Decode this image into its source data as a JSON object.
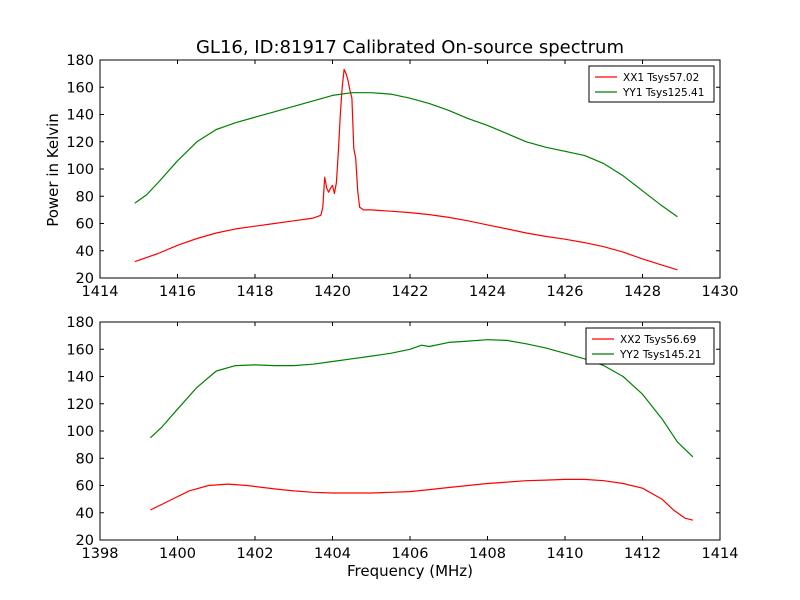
{
  "chart_data": {
    "type": "line",
    "title": "GL16, ID:81917 Calibrated On-source spectrum",
    "ylabel": "Power in Kelvin",
    "xlabel": "Frequency (MHz)",
    "grid": false,
    "legend_position": "top-right",
    "panels": [
      {
        "xlim": [
          1414,
          1430
        ],
        "ylim": [
          20,
          180
        ],
        "xticks": [
          "1414",
          "1416",
          "1418",
          "1420",
          "1422",
          "1424",
          "1426",
          "1428",
          "1430"
        ],
        "yticks": [
          "20",
          "40",
          "60",
          "80",
          "100",
          "120",
          "140",
          "160",
          "180"
        ],
        "series": [
          {
            "name": "XX1 Tsys57.02",
            "color": "#ff0000",
            "points": [
              [
                1414.9,
                32
              ],
              [
                1415.5,
                38
              ],
              [
                1416,
                44
              ],
              [
                1416.5,
                49
              ],
              [
                1417,
                53
              ],
              [
                1417.5,
                56
              ],
              [
                1418,
                58
              ],
              [
                1418.5,
                60
              ],
              [
                1419,
                62
              ],
              [
                1419.5,
                64
              ],
              [
                1419.7,
                66
              ],
              [
                1419.75,
                72
              ],
              [
                1419.8,
                94
              ],
              [
                1419.85,
                86
              ],
              [
                1419.9,
                83
              ],
              [
                1419.95,
                86
              ],
              [
                1420.0,
                88
              ],
              [
                1420.05,
                82
              ],
              [
                1420.1,
                90
              ],
              [
                1420.15,
                112
              ],
              [
                1420.2,
                140
              ],
              [
                1420.25,
                160
              ],
              [
                1420.3,
                173
              ],
              [
                1420.35,
                170
              ],
              [
                1420.4,
                165
              ],
              [
                1420.45,
                158
              ],
              [
                1420.5,
                152
              ],
              [
                1420.55,
                115
              ],
              [
                1420.6,
                108
              ],
              [
                1420.65,
                84
              ],
              [
                1420.7,
                72
              ],
              [
                1420.8,
                70
              ],
              [
                1421,
                70
              ],
              [
                1421.5,
                69
              ],
              [
                1422,
                68
              ],
              [
                1422.5,
                66.5
              ],
              [
                1423,
                64.5
              ],
              [
                1423.5,
                62
              ],
              [
                1424,
                59
              ],
              [
                1424.5,
                56
              ],
              [
                1425,
                53
              ],
              [
                1425.5,
                50.5
              ],
              [
                1426,
                48.5
              ],
              [
                1426.5,
                46
              ],
              [
                1427,
                43
              ],
              [
                1427.5,
                39
              ],
              [
                1428,
                34
              ],
              [
                1428.5,
                29.5
              ],
              [
                1428.9,
                26
              ]
            ]
          },
          {
            "name": "YY1 Tsys125.41",
            "color": "#008000",
            "points": [
              [
                1414.9,
                75
              ],
              [
                1415.2,
                81
              ],
              [
                1415.5,
                90
              ],
              [
                1416,
                106
              ],
              [
                1416.5,
                120
              ],
              [
                1417,
                129
              ],
              [
                1417.5,
                134
              ],
              [
                1418,
                138
              ],
              [
                1418.5,
                142
              ],
              [
                1419,
                146
              ],
              [
                1419.5,
                150
              ],
              [
                1420,
                154
              ],
              [
                1420.5,
                156
              ],
              [
                1421,
                156
              ],
              [
                1421.5,
                155
              ],
              [
                1422,
                152
              ],
              [
                1422.5,
                148
              ],
              [
                1423,
                143
              ],
              [
                1423.5,
                137
              ],
              [
                1424,
                132
              ],
              [
                1424.5,
                126
              ],
              [
                1425,
                120
              ],
              [
                1425.5,
                116
              ],
              [
                1426,
                113
              ],
              [
                1426.5,
                110
              ],
              [
                1427,
                104
              ],
              [
                1427.5,
                95
              ],
              [
                1428,
                84
              ],
              [
                1428.5,
                73
              ],
              [
                1428.9,
                65
              ]
            ]
          }
        ]
      },
      {
        "xlim": [
          1398,
          1414
        ],
        "ylim": [
          20,
          180
        ],
        "xticks": [
          "1398",
          "1400",
          "1402",
          "1404",
          "1406",
          "1408",
          "1410",
          "1412",
          "1414"
        ],
        "yticks": [
          "20",
          "40",
          "60",
          "80",
          "100",
          "120",
          "140",
          "160",
          "180"
        ],
        "series": [
          {
            "name": "XX2 Tsys56.69",
            "color": "#ff0000",
            "points": [
              [
                1399.3,
                42
              ],
              [
                1399.8,
                49
              ],
              [
                1400.3,
                56
              ],
              [
                1400.8,
                60
              ],
              [
                1401.3,
                61
              ],
              [
                1401.8,
                60
              ],
              [
                1402.5,
                57.5
              ],
              [
                1403,
                56
              ],
              [
                1403.5,
                55
              ],
              [
                1404,
                54.5
              ],
              [
                1404.5,
                54.5
              ],
              [
                1405,
                54.5
              ],
              [
                1405.5,
                55
              ],
              [
                1406,
                55.5
              ],
              [
                1406.5,
                57
              ],
              [
                1407,
                58.5
              ],
              [
                1407.5,
                60
              ],
              [
                1408,
                61.5
              ],
              [
                1408.5,
                62.5
              ],
              [
                1409,
                63.5
              ],
              [
                1409.5,
                64
              ],
              [
                1410,
                64.5
              ],
              [
                1410.5,
                64.5
              ],
              [
                1411,
                63.5
              ],
              [
                1411.5,
                61.5
              ],
              [
                1412,
                58
              ],
              [
                1412.5,
                50
              ],
              [
                1412.8,
                42
              ],
              [
                1413.1,
                36
              ],
              [
                1413.3,
                34.5
              ]
            ]
          },
          {
            "name": "YY2 Tsys145.21",
            "color": "#008000",
            "points": [
              [
                1399.3,
                95
              ],
              [
                1399.6,
                103
              ],
              [
                1400,
                116
              ],
              [
                1400.5,
                132
              ],
              [
                1401,
                144
              ],
              [
                1401.5,
                148
              ],
              [
                1402,
                148.5
              ],
              [
                1402.5,
                148
              ],
              [
                1403,
                148
              ],
              [
                1403.5,
                149
              ],
              [
                1404,
                151
              ],
              [
                1404.5,
                153
              ],
              [
                1405,
                155
              ],
              [
                1405.5,
                157
              ],
              [
                1406,
                160
              ],
              [
                1406.3,
                163
              ],
              [
                1406.5,
                162
              ],
              [
                1407,
                165
              ],
              [
                1407.5,
                166
              ],
              [
                1408,
                167
              ],
              [
                1408.5,
                166.5
              ],
              [
                1409,
                164
              ],
              [
                1409.5,
                161
              ],
              [
                1410,
                157
              ],
              [
                1410.5,
                153
              ],
              [
                1411,
                148
              ],
              [
                1411.5,
                140
              ],
              [
                1412,
                127
              ],
              [
                1412.5,
                109
              ],
              [
                1412.9,
                92
              ],
              [
                1413.3,
                81
              ]
            ]
          }
        ]
      }
    ]
  }
}
